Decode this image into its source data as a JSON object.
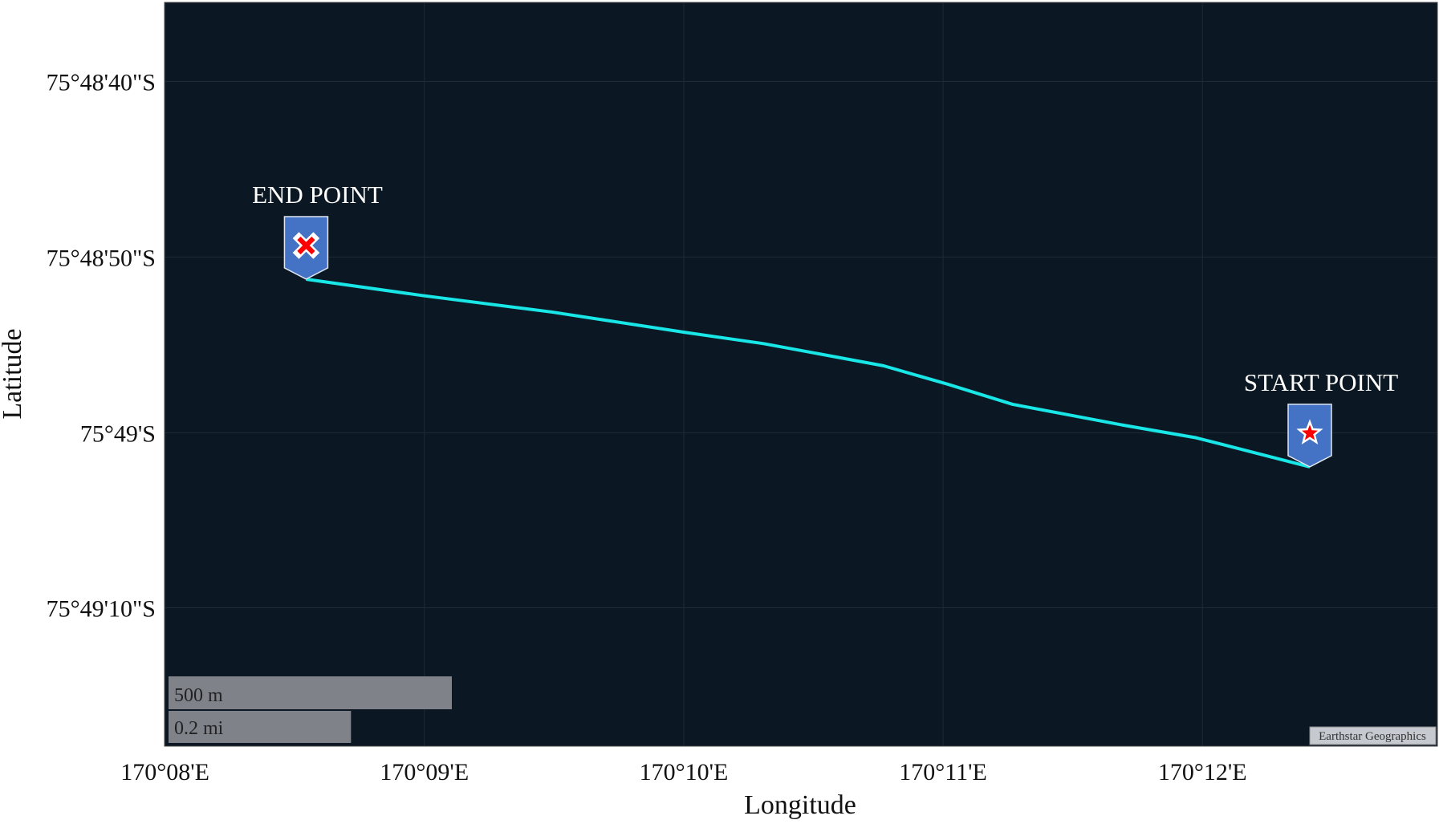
{
  "chart_data": {
    "type": "line",
    "xlabel": "Longitude",
    "ylabel": "Latitude",
    "xlim": [
      170.1333,
      170.2151
    ],
    "ylim": [
      -75.82163,
      -75.80986
    ],
    "grid": true,
    "x_ticks": [
      {
        "value": 170.13333,
        "label": "170°08'E"
      },
      {
        "value": 170.15,
        "label": "170°09'E"
      },
      {
        "value": 170.16667,
        "label": "170°10'E"
      },
      {
        "value": 170.18333,
        "label": "170°11'E"
      },
      {
        "value": 170.2,
        "label": "170°12'E"
      }
    ],
    "y_ticks": [
      {
        "value": -75.81111,
        "label": "75°48'40\"S"
      },
      {
        "value": -75.81389,
        "label": "75°48'50\"S"
      },
      {
        "value": -75.81667,
        "label": "75°49'S"
      },
      {
        "value": -75.81944,
        "label": "75°49'10\"S"
      }
    ],
    "series": [
      {
        "color": "#19e6e6",
        "points": [
          [
            170.1424,
            -75.81424
          ],
          [
            170.1499,
            -75.8145
          ],
          [
            170.1582,
            -75.81476
          ],
          [
            170.1667,
            -75.81508
          ],
          [
            170.1718,
            -75.81526
          ],
          [
            170.1795,
            -75.81561
          ],
          [
            170.1836,
            -75.8159
          ],
          [
            170.1878,
            -75.81622
          ],
          [
            170.1949,
            -75.81655
          ],
          [
            170.1996,
            -75.81675
          ],
          [
            170.2069,
            -75.81721
          ]
        ]
      }
    ],
    "markers": [
      {
        "label": "END POINT",
        "lon": 170.1424,
        "lat": -75.81424,
        "icon": "x-icon",
        "color": "#4472c4",
        "symbol_color": "#ff0000"
      },
      {
        "label": "START POINT",
        "lon": 170.2069,
        "lat": -75.81721,
        "icon": "star-icon",
        "color": "#4472c4",
        "symbol_color": "#ff0000"
      }
    ],
    "scale_bar": [
      {
        "label": "500 m",
        "fraction": 1.0
      },
      {
        "label": "0.2 mi",
        "fraction": 0.644
      }
    ],
    "attribution": "Earthstar Geographics",
    "background_color": "#0b1824"
  }
}
